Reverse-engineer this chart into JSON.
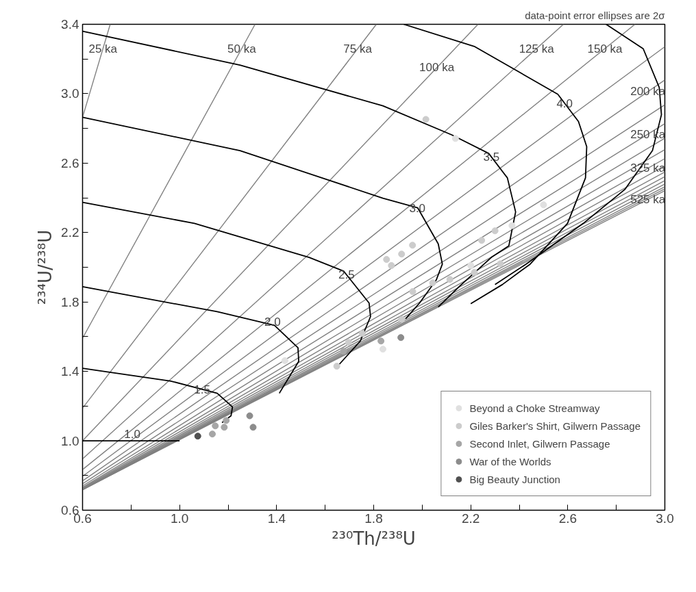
{
  "chart_data": {
    "type": "scatter",
    "xlabel": "²³⁰Th/²³⁸U",
    "ylabel": "²³⁴U/²³⁸U",
    "xlim": [
      0.6,
      3.0
    ],
    "ylim": [
      0.6,
      3.4
    ],
    "xticks": [
      0.6,
      {
        "value": 0.8,
        "label": null
      },
      {
        "value": 1.0,
        "label": "1.0"
      },
      {
        "value": 1.2,
        "label": null
      },
      1.4,
      {
        "value": 1.6,
        "label": null
      },
      1.8,
      {
        "value": 2.0,
        "label": null
      },
      2.2,
      {
        "value": 2.4,
        "label": null
      },
      2.6,
      {
        "value": 2.8,
        "label": null
      },
      {
        "value": 3.0,
        "label": "3.0"
      }
    ],
    "yticks": [
      0.6,
      {
        "value": 0.8,
        "label": null
      },
      {
        "value": 1.0,
        "label": "1.0"
      },
      {
        "value": 1.2,
        "label": null
      },
      1.4,
      {
        "value": 1.6,
        "label": null
      },
      1.8,
      {
        "value": 2.0,
        "label": null
      },
      2.2,
      {
        "value": 2.4,
        "label": null
      },
      2.6,
      {
        "value": 2.8,
        "label": null
      },
      {
        "value": 3.0,
        "label": "3.0"
      },
      {
        "value": 3.2,
        "label": null
      },
      3.4
    ],
    "grid": false,
    "legend": "bottom right",
    "series": [
      {
        "type": "line",
        "color": "#808080",
        "x": [
          0.6,
          0.714
        ],
        "values": [
          2.864,
          3.4
        ]
      },
      {
        "type": "line",
        "color": "#808080",
        "x": [
          0.6,
          1.311
        ],
        "values": [
          1.591,
          3.4
        ]
      },
      {
        "type": "line",
        "color": "#808080",
        "x": [
          0.6,
          1.811
        ],
        "values": [
          1.188,
          3.4
        ]
      },
      {
        "type": "line",
        "color": "#808080",
        "x": [
          0.6,
          2.23
        ],
        "values": [
          1.0,
          3.4
        ]
      },
      {
        "type": "line",
        "color": "#808080",
        "x": [
          0.6,
          2.582
        ],
        "values": [
          0.896,
          3.4
        ]
      },
      {
        "type": "line",
        "color": "#808080",
        "x": [
          0.6,
          2.877
        ],
        "values": [
          0.834,
          3.4
        ]
      },
      {
        "type": "line",
        "color": "#808080",
        "x": [
          0.6,
          3.0
        ],
        "values": [
          0.795,
          3.271
        ]
      },
      {
        "type": "line",
        "color": "#808080",
        "x": [
          0.6,
          3.0
        ],
        "values": [
          0.769,
          3.079
        ]
      },
      {
        "type": "line",
        "color": "#808080",
        "x": [
          0.6,
          3.0
        ],
        "values": [
          0.752,
          2.936
        ]
      },
      {
        "type": "line",
        "color": "#808080",
        "x": [
          0.6,
          3.0
        ],
        "values": [
          0.74,
          2.828
        ]
      },
      {
        "type": "line",
        "color": "#808080",
        "x": [
          0.6,
          3.0
        ],
        "values": [
          0.732,
          2.744
        ]
      },
      {
        "type": "line",
        "color": "#808080",
        "x": [
          0.6,
          3.0
        ],
        "values": [
          0.727,
          2.678
        ]
      },
      {
        "type": "line",
        "color": "#808080",
        "x": [
          0.6,
          3.0
        ],
        "values": [
          0.723,
          2.626
        ]
      },
      {
        "type": "line",
        "color": "#808080",
        "x": [
          0.6,
          3.0
        ],
        "values": [
          0.721,
          2.584
        ]
      },
      {
        "type": "line",
        "color": "#808080",
        "x": [
          0.6,
          3.0
        ],
        "values": [
          0.72,
          2.549
        ]
      },
      {
        "type": "line",
        "color": "#808080",
        "x": [
          0.6,
          3.0
        ],
        "values": [
          0.719,
          2.522
        ]
      },
      {
        "type": "line",
        "color": "#808080",
        "x": [
          0.6,
          3.0
        ],
        "values": [
          0.718,
          2.499
        ]
      },
      {
        "type": "line",
        "color": "#808080",
        "x": [
          0.6,
          3.0
        ],
        "values": [
          0.718,
          2.48
        ]
      },
      {
        "type": "line",
        "color": "#808080",
        "x": [
          0.6,
          3.0
        ],
        "values": [
          0.718,
          2.464
        ]
      },
      {
        "type": "line",
        "color": "#808080",
        "x": [
          0.6,
          3.0
        ],
        "values": [
          0.719,
          2.452
        ]
      },
      {
        "type": "line",
        "color": "#808080",
        "x": [
          0.6,
          3.0
        ],
        "values": [
          0.719,
          2.441
        ]
      },
      {
        "type": "line",
        "color": "#000000",
        "x": [
          0.6,
          1.0
        ],
        "values": [
          1.0,
          1.0
        ]
      },
      {
        "type": "line",
        "color": "#000000",
        "x": [
          0.6,
          0.964,
          1.155,
          1.218,
          1.212,
          1.175
        ],
        "values": [
          1.418,
          1.344,
          1.274,
          1.195,
          1.144,
          1.105
        ]
      },
      {
        "type": "line",
        "color": "#000000",
        "x": [
          0.6,
          1.155,
          1.391,
          1.488,
          1.491,
          1.411
        ],
        "values": [
          1.888,
          1.744,
          1.665,
          1.536,
          1.458,
          1.274
        ]
      },
      {
        "type": "line",
        "color": "#000000",
        "x": [
          0.6,
          1.061,
          1.534,
          1.676,
          1.781,
          1.787,
          1.745,
          1.659
        ],
        "values": [
          2.374,
          2.253,
          2.057,
          1.978,
          1.794,
          1.716,
          1.575,
          1.442
        ]
      },
      {
        "type": "line",
        "color": "#000000",
        "x": [
          0.6,
          1.249,
          1.838,
          1.981,
          2.066,
          2.083,
          2.058,
          1.989,
          1.932
        ],
        "values": [
          2.864,
          2.672,
          2.398,
          2.343,
          2.135,
          2.018,
          1.927,
          1.794,
          1.704
        ]
      },
      {
        "type": "line",
        "color": "#000000",
        "x": [
          0.6,
          1.249,
          1.838,
          2.123,
          2.274,
          2.351,
          2.385,
          2.357,
          2.285,
          2.152,
          2.066
        ],
        "values": [
          3.36,
          3.165,
          2.93,
          2.762,
          2.656,
          2.515,
          2.319,
          2.123,
          2.057,
          1.888,
          1.771
        ]
      },
      {
        "type": "line",
        "color": "#000000",
        "x": [
          1.924,
          2.217,
          2.559,
          2.644,
          2.678,
          2.673,
          2.599,
          2.445,
          2.33,
          2.2
        ],
        "values": [
          3.4,
          3.271,
          2.997,
          2.84,
          2.695,
          2.515,
          2.253,
          2.018,
          1.9,
          1.79
        ]
      },
      {
        "type": "line",
        "color": "#000000",
        "x": [
          2.758,
          2.911,
          2.977,
          2.986,
          2.949,
          2.835,
          2.664,
          2.428,
          2.3
        ],
        "values": [
          3.4,
          3.259,
          3.036,
          2.879,
          2.672,
          2.448,
          2.253,
          2.018,
          1.9
        ]
      },
      {
        "marker": "circle",
        "name": "Beyond a Choke Streamway",
        "color": "#e0e0e0",
        "x": [
          2.137,
          2.5,
          2.37,
          1.838,
          2.2,
          1.434
        ],
        "values": [
          2.742,
          2.36,
          2.24,
          1.528,
          2.01,
          1.462
        ]
      },
      {
        "marker": "circle",
        "name": "Giles Barker's Shirt, Gilwern Passage",
        "color": "#cccccc",
        "x": [
          2.015,
          2.3,
          2.245,
          1.96,
          1.915,
          1.853,
          1.873,
          2.322,
          2.215,
          2.043,
          2.114,
          1.961,
          1.915,
          1.753,
          1.696,
          1.648
        ],
        "values": [
          2.852,
          2.21,
          2.155,
          2.127,
          2.076,
          2.045,
          2.01,
          2.02,
          1.97,
          1.91,
          1.93,
          1.86,
          1.7,
          1.618,
          1.567,
          1.43
        ]
      },
      {
        "marker": "circle",
        "name": "Second Inlet, Gilwern Passage",
        "color": "#a6a6a6",
        "x": [
          1.83,
          1.676,
          1.192,
          1.184,
          1.147,
          1.135
        ],
        "values": [
          1.575,
          1.516,
          1.117,
          1.078,
          1.086,
          1.039
        ]
      },
      {
        "marker": "circle",
        "name": "War of the Worlds",
        "color": "#8c8c8c",
        "x": [
          1.912,
          1.289,
          1.303
        ],
        "values": [
          1.595,
          1.144,
          1.078
        ]
      },
      {
        "marker": "circle",
        "name": "Big Beauty Junction",
        "color": "#505050",
        "x": [
          1.075
        ],
        "values": [
          1.027
        ]
      }
    ],
    "annotations": [
      "data-point error ellipses are 2σ",
      {
        "text": "25 ka",
        "x": 0.684,
        "y": 3.26
      },
      {
        "text": "50 ka",
        "x": 1.256,
        "y": 3.26
      },
      {
        "text": "75 ka",
        "x": 1.734,
        "y": 3.26
      },
      {
        "text": "100 ka",
        "x": 2.06,
        "y": 3.15
      },
      {
        "text": "125 ka",
        "x": 2.471,
        "y": 3.26
      },
      {
        "text": "150 ka",
        "x": 2.753,
        "y": 3.26
      },
      {
        "text": "200 ka",
        "x": 2.93,
        "y": 3.012
      },
      {
        "text": "250 ka",
        "x": 2.93,
        "y": 2.767
      },
      {
        "text": "325 ka",
        "x": 2.93,
        "y": 2.57
      },
      {
        "text": "525 ka",
        "x": 2.93,
        "y": 2.391
      },
      {
        "text": "4.0",
        "x": 2.587,
        "y": 2.945
      },
      {
        "text": "3.5",
        "x": 2.285,
        "y": 2.636
      },
      {
        "text": "3.0",
        "x": 1.98,
        "y": 2.34
      },
      {
        "text": "2.5",
        "x": 1.688,
        "y": 1.957
      },
      {
        "text": "2.0",
        "x": 1.383,
        "y": 1.685
      },
      {
        "text": "1.5",
        "x": 1.093,
        "y": 1.297
      },
      {
        "text": "1.0",
        "x": 0.805,
        "y": 1.04
      }
    ]
  }
}
